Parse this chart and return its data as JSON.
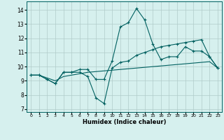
{
  "xlabel": "Humidex (Indice chaleur)",
  "background_color": "#d6f0ee",
  "grid_color": "#b0ccca",
  "line_color": "#006060",
  "xlim": [
    -0.5,
    23.5
  ],
  "ylim": [
    6.8,
    14.6
  ],
  "xticks": [
    0,
    1,
    2,
    3,
    4,
    5,
    6,
    7,
    8,
    9,
    10,
    11,
    12,
    13,
    14,
    15,
    16,
    17,
    18,
    19,
    20,
    21,
    22,
    23
  ],
  "yticks": [
    7,
    8,
    9,
    10,
    11,
    12,
    13,
    14
  ],
  "series1_x": [
    0,
    1,
    2,
    3,
    4,
    5,
    6,
    7,
    8,
    9,
    10,
    11,
    12,
    13,
    14,
    15,
    16,
    17,
    18,
    19,
    20,
    21,
    22,
    23
  ],
  "series1_y": [
    9.4,
    9.4,
    9.1,
    8.8,
    9.6,
    9.6,
    9.8,
    9.8,
    9.1,
    9.1,
    10.4,
    12.8,
    13.1,
    14.1,
    13.3,
    11.6,
    10.5,
    10.7,
    10.7,
    11.4,
    11.1,
    11.1,
    10.7,
    9.9
  ],
  "series2_x": [
    0,
    1,
    2,
    3,
    4,
    5,
    6,
    7,
    8,
    9,
    10,
    11,
    12,
    13,
    14,
    15,
    16,
    17,
    18,
    19,
    20,
    21,
    22,
    23
  ],
  "series2_y": [
    9.4,
    9.4,
    9.1,
    8.8,
    9.6,
    9.6,
    9.6,
    9.3,
    7.8,
    7.4,
    9.9,
    10.3,
    10.4,
    10.8,
    11.0,
    11.2,
    11.4,
    11.5,
    11.6,
    11.7,
    11.8,
    11.9,
    10.7,
    9.9
  ],
  "series3_x": [
    0,
    1,
    2,
    3,
    4,
    5,
    6,
    7,
    8,
    9,
    10,
    11,
    12,
    13,
    14,
    15,
    16,
    17,
    18,
    19,
    20,
    21,
    22,
    23
  ],
  "series3_y": [
    9.4,
    9.4,
    9.2,
    9.0,
    9.3,
    9.4,
    9.5,
    9.6,
    9.65,
    9.7,
    9.75,
    9.8,
    9.85,
    9.9,
    9.95,
    10.0,
    10.05,
    10.1,
    10.15,
    10.2,
    10.25,
    10.3,
    10.35,
    9.9
  ]
}
